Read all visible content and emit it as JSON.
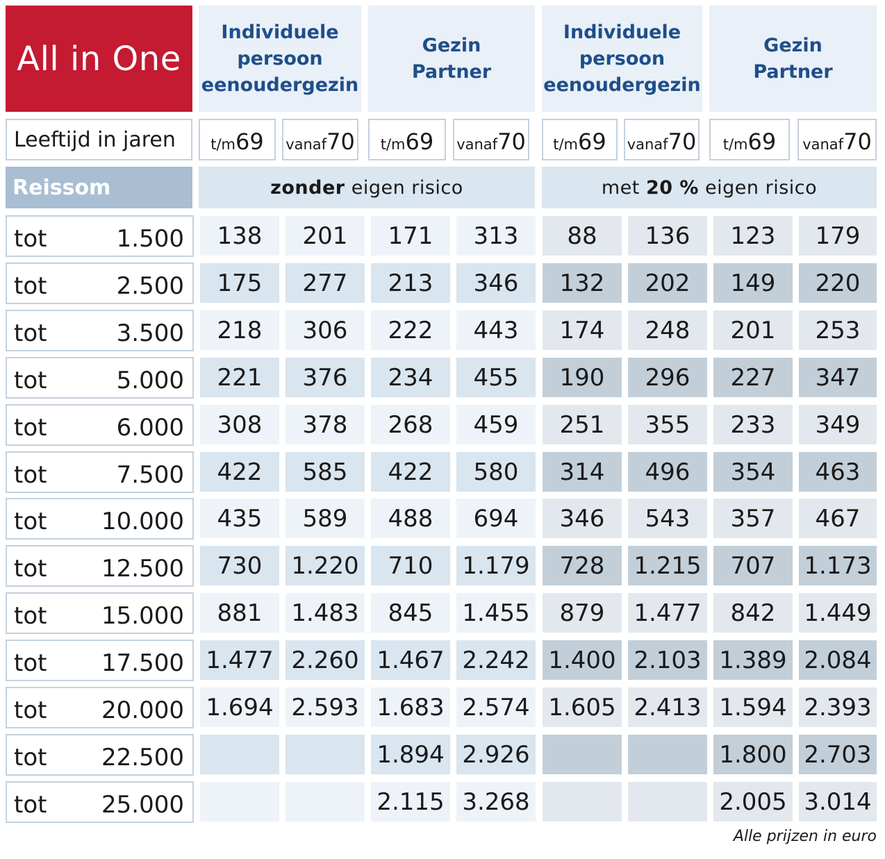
{
  "brand": "All in One",
  "groups": [
    "Individuele\npersoon\neenoudergezin",
    "Gezin\nPartner",
    "Individuele\npersoon\neenoudergezin",
    "Gezin\nPartner"
  ],
  "age": {
    "label": "Leeftijd in jaren",
    "columns": [
      {
        "prefix": "t/m",
        "num": "69"
      },
      {
        "prefix": "vanaf",
        "num": "70"
      },
      {
        "prefix": "t/m",
        "num": "69"
      },
      {
        "prefix": "vanaf",
        "num": "70"
      },
      {
        "prefix": "t/m",
        "num": "69"
      },
      {
        "prefix": "vanaf",
        "num": "70"
      },
      {
        "prefix": "t/m",
        "num": "69"
      },
      {
        "prefix": "vanaf",
        "num": "70"
      }
    ]
  },
  "reissom_label": "Reissom",
  "bands": [
    {
      "bold": "zonder",
      "rest": " eigen risico"
    },
    {
      "pre": "met ",
      "bold": "20 %",
      "rest": " eigen risico"
    }
  ],
  "row_prefix": "tot",
  "rows": [
    {
      "amount": "1.500",
      "values": [
        "138",
        "201",
        "171",
        "313",
        "88",
        "136",
        "123",
        "179"
      ]
    },
    {
      "amount": "2.500",
      "values": [
        "175",
        "277",
        "213",
        "346",
        "132",
        "202",
        "149",
        "220"
      ]
    },
    {
      "amount": "3.500",
      "values": [
        "218",
        "306",
        "222",
        "443",
        "174",
        "248",
        "201",
        "253"
      ]
    },
    {
      "amount": "5.000",
      "values": [
        "221",
        "376",
        "234",
        "455",
        "190",
        "296",
        "227",
        "347"
      ]
    },
    {
      "amount": "6.000",
      "values": [
        "308",
        "378",
        "268",
        "459",
        "251",
        "355",
        "233",
        "349"
      ]
    },
    {
      "amount": "7.500",
      "values": [
        "422",
        "585",
        "422",
        "580",
        "314",
        "496",
        "354",
        "463"
      ]
    },
    {
      "amount": "10.000",
      "values": [
        "435",
        "589",
        "488",
        "694",
        "346",
        "543",
        "357",
        "467"
      ]
    },
    {
      "amount": "12.500",
      "values": [
        "730",
        "1.220",
        "710",
        "1.179",
        "728",
        "1.215",
        "707",
        "1.173"
      ]
    },
    {
      "amount": "15.000",
      "values": [
        "881",
        "1.483",
        "845",
        "1.455",
        "879",
        "1.477",
        "842",
        "1.449"
      ]
    },
    {
      "amount": "17.500",
      "values": [
        "1.477",
        "2.260",
        "1.467",
        "2.242",
        "1.400",
        "2.103",
        "1.389",
        "2.084"
      ]
    },
    {
      "amount": "20.000",
      "values": [
        "1.694",
        "2.593",
        "1.683",
        "2.574",
        "1.605",
        "2.413",
        "1.594",
        "2.393"
      ]
    },
    {
      "amount": "22.500",
      "values": [
        "",
        "",
        "1.894",
        "2.926",
        "",
        "",
        "1.800",
        "2.703"
      ]
    },
    {
      "amount": "25.000",
      "values": [
        "",
        "",
        "2.115",
        "3.268",
        "",
        "",
        "2.005",
        "3.014"
      ]
    }
  ],
  "colors": {
    "brand": "#c41a32",
    "heading_text": "#1f4e8a",
    "zonder_odd": "#eef3f9",
    "zonder_even": "#d9e5ef",
    "met_odd": "#e3e8ee",
    "met_even": "#c2cfd9"
  },
  "footnote": "Alle prijzen in euro"
}
